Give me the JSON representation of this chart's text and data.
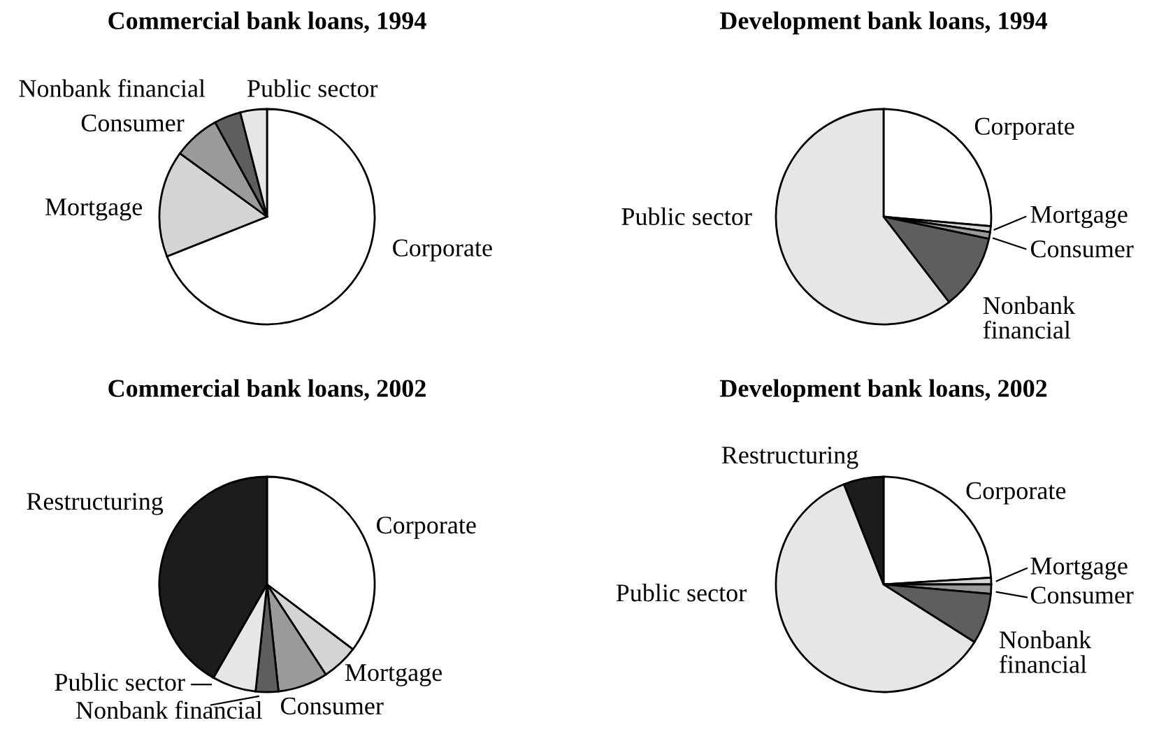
{
  "chart_data": [
    {
      "type": "pie",
      "title": "Commercial bank loans, 1994",
      "categories": [
        "Corporate",
        "Mortgage",
        "Consumer",
        "Nonbank financial",
        "Public sector"
      ],
      "values": [
        69,
        16,
        7,
        4,
        4
      ],
      "colors": [
        "#ffffff",
        "#d4d4d4",
        "#9a9a9a",
        "#5e5e5e",
        "#e6e6e6"
      ]
    },
    {
      "type": "pie",
      "title": "Development bank loans, 1994",
      "categories": [
        "Corporate",
        "Mortgage",
        "Consumer",
        "Nonbank\nfinancial",
        "Public sector"
      ],
      "values": [
        26.4,
        0.9,
        1.0,
        11.3,
        60.4
      ],
      "colors": [
        "#ffffff",
        "#d4d4d4",
        "#9a9a9a",
        "#5e5e5e",
        "#e6e6e6"
      ]
    },
    {
      "type": "pie",
      "title": "Commercial bank loans, 2002",
      "categories": [
        "Corporate",
        "Mortgage",
        "Consumer",
        "Nonbank financial",
        "Public sector",
        "Restructuring"
      ],
      "values": [
        35.3,
        5.5,
        7.5,
        3.4,
        6.6,
        41.7
      ],
      "colors": [
        "#ffffff",
        "#d4d4d4",
        "#9a9a9a",
        "#5e5e5e",
        "#e6e6e6",
        "#1c1c1c"
      ]
    },
    {
      "type": "pie",
      "title": "Development bank loans, 2002",
      "categories": [
        "Corporate",
        "Mortgage",
        "Consumer",
        "Nonbank\nfinancial",
        "Public sector",
        "Restructuring"
      ],
      "values": [
        24.0,
        1.0,
        1.4,
        7.6,
        60.0,
        6.0
      ],
      "colors": [
        "#ffffff",
        "#d4d4d4",
        "#9a9a9a",
        "#5e5e5e",
        "#e6e6e6",
        "#1c1c1c"
      ]
    }
  ]
}
